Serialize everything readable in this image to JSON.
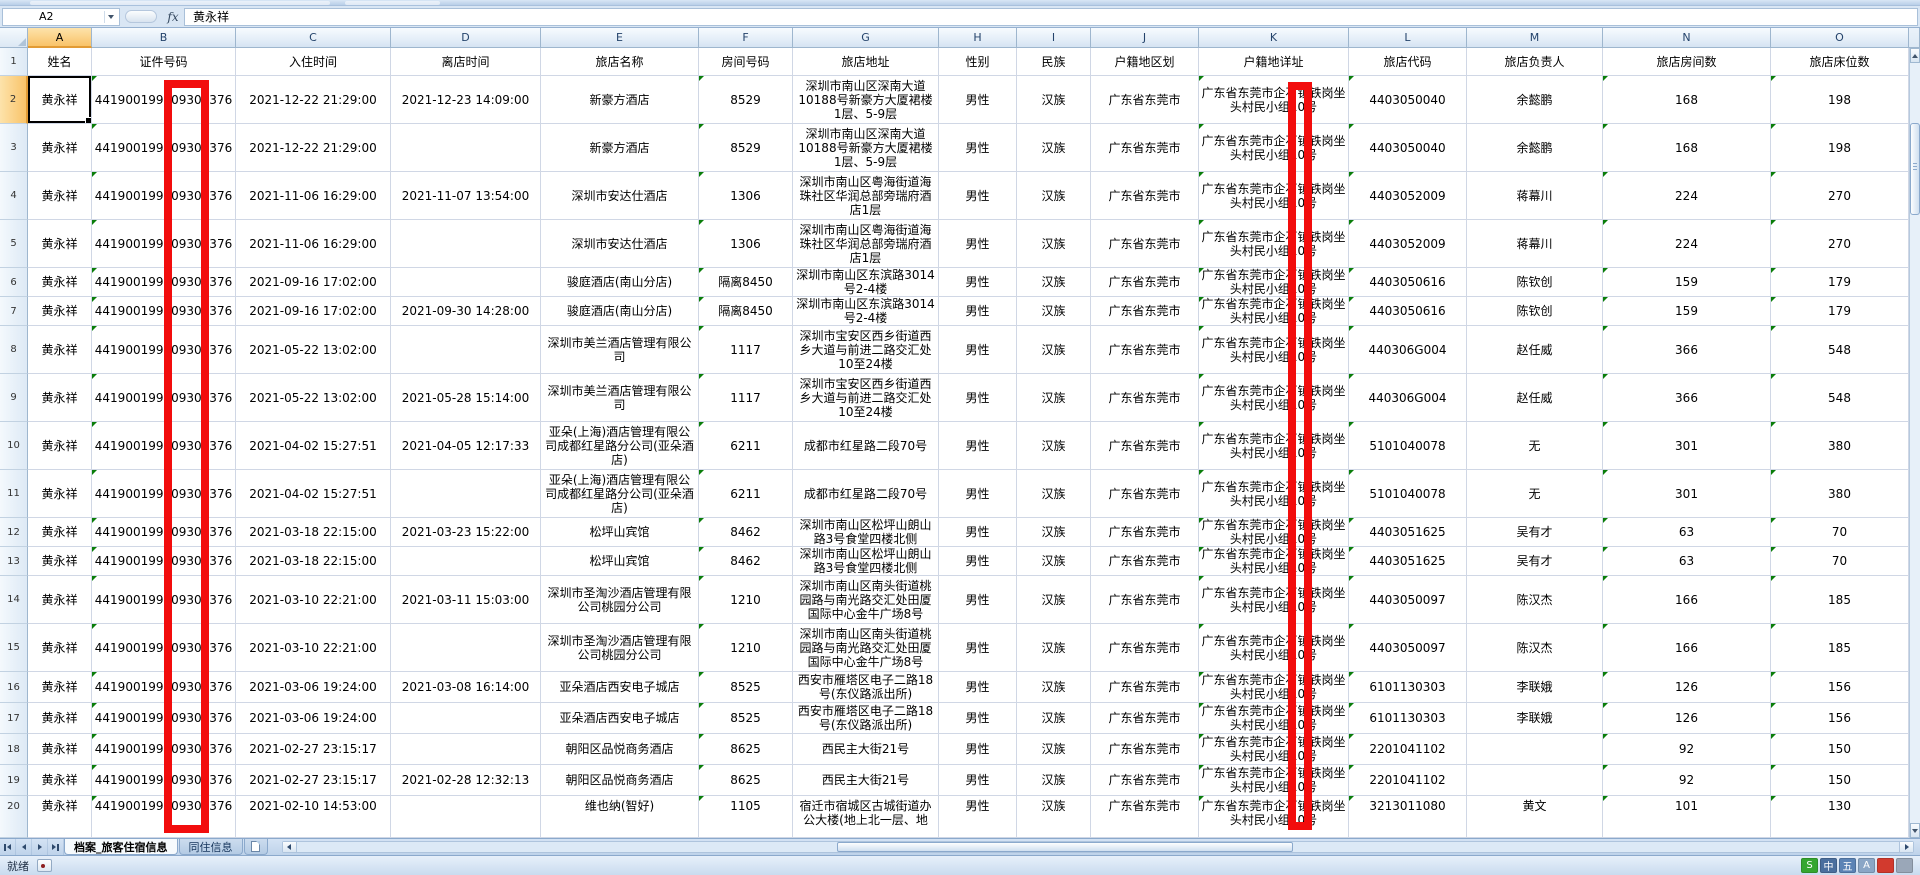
{
  "chrome": {
    "name_box": "A2",
    "fx_label": "fx",
    "formula": "黄永祥"
  },
  "selection": {
    "cell": "A2",
    "column": "A",
    "row": 2
  },
  "sheet": {
    "column_letters": [
      "A",
      "B",
      "C",
      "D",
      "E",
      "F",
      "G",
      "H",
      "I",
      "J",
      "K",
      "L",
      "M",
      "N",
      "O"
    ],
    "rows": [
      {
        "num": 1,
        "cells": [
          "姓名",
          "证件号码",
          "入住时间",
          "离店时间",
          "旅店名称",
          "房间号码",
          "旅店地址",
          "性别",
          "民族",
          "户籍地区划",
          "户籍地详址",
          "旅店代码",
          "旅店负责人",
          "旅店房间数",
          "旅店床位数"
        ]
      },
      {
        "num": 2,
        "cells": [
          "黄永祥",
          "441900199009300376",
          "2021-12-22 21:29:00",
          "2021-12-23 14:09:00",
          "新豪方酒店",
          "8529",
          "深圳市南山区深南大道10188号新豪方大厦裙楼1层、5-9层",
          "男性",
          "汉族",
          "广东省东莞市",
          "广东省东莞市企石镇铁岗坐头村民小组10号",
          "4403050040",
          "余懿鹏",
          "168",
          "198"
        ]
      },
      {
        "num": 3,
        "cells": [
          "黄永祥",
          "441900199009300376",
          "2021-12-22 21:29:00",
          "",
          "新豪方酒店",
          "8529",
          "深圳市南山区深南大道10188号新豪方大厦裙楼1层、5-9层",
          "男性",
          "汉族",
          "广东省东莞市",
          "广东省东莞市企石镇铁岗坐头村民小组10号",
          "4403050040",
          "余懿鹏",
          "168",
          "198"
        ]
      },
      {
        "num": 4,
        "cells": [
          "黄永祥",
          "441900199009300376",
          "2021-11-06 16:29:00",
          "2021-11-07 13:54:00",
          "深圳市安达仕酒店",
          "1306",
          "深圳市南山区粤海街道海珠社区华润总部旁瑞府酒店1层",
          "男性",
          "汉族",
          "广东省东莞市",
          "广东省东莞市企石镇铁岗坐头村民小组10号",
          "4403052009",
          "蒋幕川",
          "224",
          "270"
        ]
      },
      {
        "num": 5,
        "cells": [
          "黄永祥",
          "441900199009300376",
          "2021-11-06 16:29:00",
          "",
          "深圳市安达仕酒店",
          "1306",
          "深圳市南山区粤海街道海珠社区华润总部旁瑞府酒店1层",
          "男性",
          "汉族",
          "广东省东莞市",
          "广东省东莞市企石镇铁岗坐头村民小组10号",
          "4403052009",
          "蒋幕川",
          "224",
          "270"
        ]
      },
      {
        "num": 6,
        "cells": [
          "黄永祥",
          "441900199009300376",
          "2021-09-16 17:02:00",
          "",
          "骏庭酒店(南山分店)",
          "隔离8450",
          "深圳市南山区东滨路3014号2-4楼",
          "男性",
          "汉族",
          "广东省东莞市",
          "广东省东莞市企石镇铁岗坐头村民小组10号",
          "4403050616",
          "陈钦创",
          "159",
          "179"
        ]
      },
      {
        "num": 7,
        "cells": [
          "黄永祥",
          "441900199009300376",
          "2021-09-16 17:02:00",
          "2021-09-30 14:28:00",
          "骏庭酒店(南山分店)",
          "隔离8450",
          "深圳市南山区东滨路3014号2-4楼",
          "男性",
          "汉族",
          "广东省东莞市",
          "广东省东莞市企石镇铁岗坐头村民小组10号",
          "4403050616",
          "陈钦创",
          "159",
          "179"
        ]
      },
      {
        "num": 8,
        "cells": [
          "黄永祥",
          "441900199009300376",
          "2021-05-22 13:02:00",
          "",
          "深圳市美兰酒店管理有限公司",
          "1117",
          "深圳市宝安区西乡街道西乡大道与前进二路交汇处10至24楼",
          "男性",
          "汉族",
          "广东省东莞市",
          "广东省东莞市企石镇铁岗坐头村民小组10号",
          "440306G004",
          "赵任威",
          "366",
          "548"
        ]
      },
      {
        "num": 9,
        "cells": [
          "黄永祥",
          "441900199009300376",
          "2021-05-22 13:02:00",
          "2021-05-28 15:14:00",
          "深圳市美兰酒店管理有限公司",
          "1117",
          "深圳市宝安区西乡街道西乡大道与前进二路交汇处10至24楼",
          "男性",
          "汉族",
          "广东省东莞市",
          "广东省东莞市企石镇铁岗坐头村民小组10号",
          "440306G004",
          "赵任威",
          "366",
          "548"
        ]
      },
      {
        "num": 10,
        "cells": [
          "黄永祥",
          "441900199009300376",
          "2021-04-02 15:27:51",
          "2021-04-05 12:17:33",
          "亚朵(上海)酒店管理有限公司成都红星路分公司(亚朵酒店)",
          "6211",
          "成都市红星路二段70号",
          "男性",
          "汉族",
          "广东省东莞市",
          "广东省东莞市企石镇铁岗坐头村民小组10号",
          "5101040078",
          "无",
          "301",
          "380"
        ]
      },
      {
        "num": 11,
        "cells": [
          "黄永祥",
          "441900199009300376",
          "2021-04-02 15:27:51",
          "",
          "亚朵(上海)酒店管理有限公司成都红星路分公司(亚朵酒店)",
          "6211",
          "成都市红星路二段70号",
          "男性",
          "汉族",
          "广东省东莞市",
          "广东省东莞市企石镇铁岗坐头村民小组10号",
          "5101040078",
          "无",
          "301",
          "380"
        ]
      },
      {
        "num": 12,
        "cells": [
          "黄永祥",
          "441900199009300376",
          "2021-03-18 22:15:00",
          "2021-03-23 15:22:00",
          "松坪山宾馆",
          "8462",
          "深圳市南山区松坪山朗山路3号食堂四楼北侧",
          "男性",
          "汉族",
          "广东省东莞市",
          "广东省东莞市企石镇铁岗坐头村民小组10号",
          "4403051625",
          "吴有才",
          "63",
          "70"
        ]
      },
      {
        "num": 13,
        "cells": [
          "黄永祥",
          "441900199009300376",
          "2021-03-18 22:15:00",
          "",
          "松坪山宾馆",
          "8462",
          "深圳市南山区松坪山朗山路3号食堂四楼北侧",
          "男性",
          "汉族",
          "广东省东莞市",
          "广东省东莞市企石镇铁岗坐头村民小组10号",
          "4403051625",
          "吴有才",
          "63",
          "70"
        ]
      },
      {
        "num": 14,
        "cells": [
          "黄永祥",
          "441900199009300376",
          "2021-03-10 22:21:00",
          "2021-03-11 15:03:00",
          "深圳市圣淘沙酒店管理有限公司桃园分公司",
          "1210",
          "深圳市南山区南头街道桃园路与南光路交汇处田厦国际中心金牛广场8号",
          "男性",
          "汉族",
          "广东省东莞市",
          "广东省东莞市企石镇铁岗坐头村民小组10号",
          "4403050097",
          "陈汉杰",
          "166",
          "185"
        ]
      },
      {
        "num": 15,
        "cells": [
          "黄永祥",
          "441900199009300376",
          "2021-03-10 22:21:00",
          "",
          "深圳市圣淘沙酒店管理有限公司桃园分公司",
          "1210",
          "深圳市南山区南头街道桃园路与南光路交汇处田厦国际中心金牛广场8号",
          "男性",
          "汉族",
          "广东省东莞市",
          "广东省东莞市企石镇铁岗坐头村民小组10号",
          "4403050097",
          "陈汉杰",
          "166",
          "185"
        ]
      },
      {
        "num": 16,
        "cells": [
          "黄永祥",
          "441900199009300376",
          "2021-03-06 19:24:00",
          "2021-03-08 16:14:00",
          "亚朵酒店西安电子城店",
          "8525",
          "西安市雁塔区电子二路18号(东仪路派出所)",
          "男性",
          "汉族",
          "广东省东莞市",
          "广东省东莞市企石镇铁岗坐头村民小组10号",
          "6101130303",
          "李联娥",
          "126",
          "156"
        ]
      },
      {
        "num": 17,
        "cells": [
          "黄永祥",
          "441900199009300376",
          "2021-03-06 19:24:00",
          "",
          "亚朵酒店西安电子城店",
          "8525",
          "西安市雁塔区电子二路18号(东仪路派出所)",
          "男性",
          "汉族",
          "广东省东莞市",
          "广东省东莞市企石镇铁岗坐头村民小组10号",
          "6101130303",
          "李联娥",
          "126",
          "156"
        ]
      },
      {
        "num": 18,
        "cells": [
          "黄永祥",
          "441900199009300376",
          "2021-02-27 23:15:17",
          "",
          "朝阳区品悦商务酒店",
          "8625",
          "西民主大街21号",
          "男性",
          "汉族",
          "广东省东莞市",
          "广东省东莞市企石镇铁岗坐头村民小组10号",
          "2201041102",
          "",
          "92",
          "150"
        ]
      },
      {
        "num": 19,
        "cells": [
          "黄永祥",
          "441900199009300376",
          "2021-02-27 23:15:17",
          "2021-02-28 12:32:13",
          "朝阳区品悦商务酒店",
          "8625",
          "西民主大街21号",
          "男性",
          "汉族",
          "广东省东莞市",
          "广东省东莞市企石镇铁岗坐头村民小组10号",
          "2201041102",
          "",
          "92",
          "150"
        ]
      },
      {
        "num": 20,
        "cells": [
          "黄永祥",
          "441900199009300376",
          "2021-02-10 14:53:00",
          "",
          "维也纳(智好)",
          "1105",
          "宿迁市宿城区古城街道办公大楼(地上北一层、地",
          "男性",
          "汉族",
          "广东省东莞市",
          "广东省东莞市企石镇铁岗坐头村民小组10号",
          "3213011080",
          "黄文",
          "101",
          "130"
        ]
      }
    ]
  },
  "tabs": {
    "items": [
      {
        "label": "档案_旅客住宿信息",
        "active": true
      },
      {
        "label": "同住信息",
        "active": false
      }
    ]
  },
  "status": {
    "ready": "就绪"
  },
  "tray": {
    "items": [
      {
        "label": "S",
        "bg": "#35a62f",
        "name": "sogou-ime-icon"
      },
      {
        "label": "中",
        "bg": "#4a6f9e",
        "name": "ime-language-icon"
      },
      {
        "label": "五",
        "bg": "#5b83b5",
        "name": "ime-wubi-icon"
      },
      {
        "label": "A",
        "bg": "#8aa6c6",
        "name": "ime-halfwidth-icon"
      },
      {
        "label": "",
        "bg": "#d23a2e",
        "name": "ime-punctuation-icon"
      },
      {
        "label": "",
        "bg": "#9aa7b8",
        "name": "ime-keyboard-icon"
      }
    ]
  },
  "annotations": {
    "red_rectangle_color": "#f20d0d",
    "error_triangle_color": "#0a7d0a",
    "header_highlight_color": "#f9c369"
  }
}
